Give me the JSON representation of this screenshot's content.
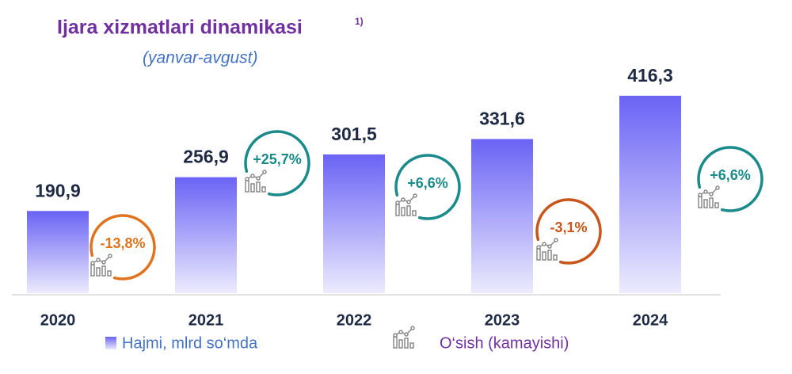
{
  "chart_data": {
    "type": "bar",
    "title": "Ijara xizmatlari dinamikasi",
    "title_note": "1)",
    "subtitle": "(yanvar-avgust)",
    "categories": [
      "2020",
      "2021",
      "2022",
      "2023",
      "2024"
    ],
    "series": [
      {
        "name": "Hajmi, mlrd so‘mda",
        "color": "#6a63f5",
        "values": [
          190.9,
          256.9,
          301.5,
          331.6,
          416.3
        ],
        "value_labels": [
          "190,9",
          "256,9",
          "301,5",
          "331,6",
          "416,3"
        ]
      }
    ],
    "growth": {
      "name": "O‘sish (kamayishi)",
      "values": [
        -13.8,
        25.7,
        6.6,
        -3.1,
        6.6
      ],
      "value_labels": [
        "-13,8%",
        "+25,7%",
        "+6,6%",
        "-3,1%",
        "+6,6%"
      ],
      "colors": [
        "#e0731f",
        "#1a8a8a",
        "#1a8a8a",
        "#c8561a",
        "#1a8a8a"
      ]
    },
    "ylim": [
      30,
      430
    ]
  }
}
